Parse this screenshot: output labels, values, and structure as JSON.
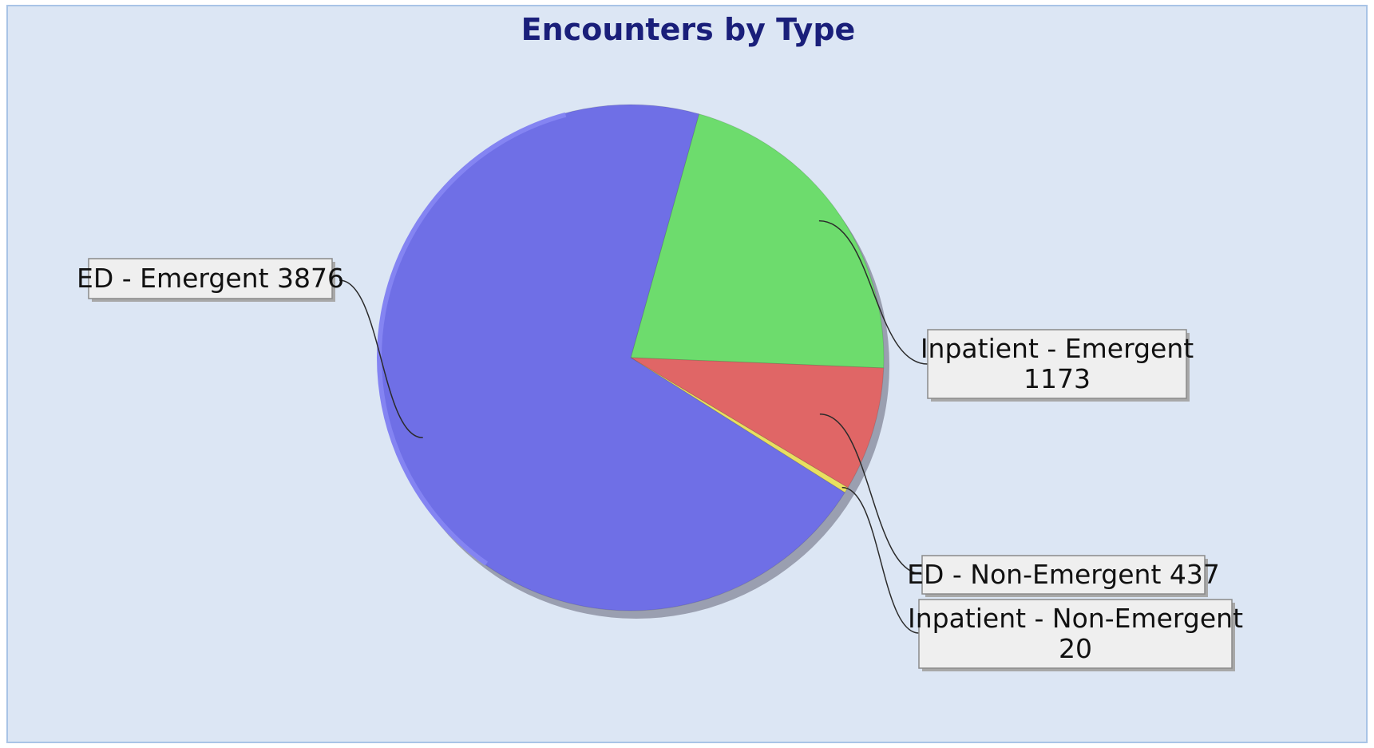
{
  "chart_data": {
    "type": "pie",
    "title": "Encounters by Type",
    "slices": [
      {
        "label": "ED - Emergent",
        "value": 3876,
        "color": "#6f6fe6",
        "label_lines": [
          "ED - Emergent 3876"
        ]
      },
      {
        "label": "Inpatient - Emergent",
        "value": 1173,
        "color": "#6ddc6d",
        "label_lines": [
          "Inpatient - Emergent",
          "1173"
        ]
      },
      {
        "label": "ED - Non-Emergent",
        "value": 437,
        "color": "#e06666",
        "label_lines": [
          "ED - Non-Emergent 437"
        ]
      },
      {
        "label": "Inpatient - Non-Emergent",
        "value": 20,
        "color": "#e8e060",
        "label_lines": [
          "Inpatient - Non-Emergent",
          "20"
        ]
      }
    ],
    "legend": "none"
  }
}
